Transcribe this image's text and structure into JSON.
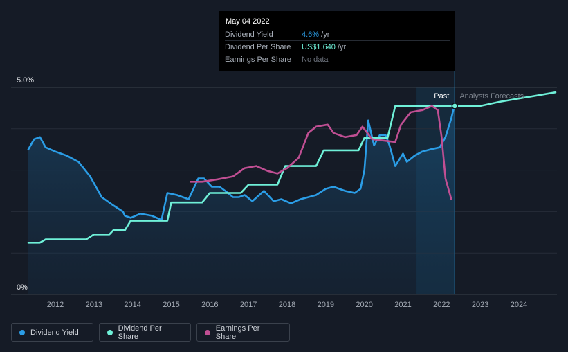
{
  "tooltip": {
    "date": "May 04 2022",
    "rows": [
      {
        "label": "Dividend Yield",
        "value": "4.6%",
        "unit": " /yr",
        "color": "#2b9de6"
      },
      {
        "label": "Dividend Per Share",
        "value": "US$1.640",
        "unit": " /yr",
        "color": "#6ff0d8"
      },
      {
        "label": "Earnings Per Share",
        "value": "No data",
        "unit": "",
        "color": "#6b717b"
      }
    ]
  },
  "legend": [
    {
      "label": "Dividend Yield",
      "color": "#2b9de6"
    },
    {
      "label": "Dividend Per Share",
      "color": "#6ff0d8"
    },
    {
      "label": "Earnings Per Share",
      "color": "#c04f93"
    }
  ],
  "chart_data": {
    "type": "line",
    "title": "",
    "ylabel": "",
    "xlabel": "",
    "x_ticks": [
      "2012",
      "2013",
      "2014",
      "2015",
      "2016",
      "2017",
      "2018",
      "2019",
      "2020",
      "2021",
      "2022",
      "2023",
      "2024"
    ],
    "y_ticks": [
      "0%",
      "5.0%"
    ],
    "ylim": [
      0,
      5.0
    ],
    "xlim": [
      2011.3,
      2024.95
    ],
    "past_label": "Past",
    "forecast_label": "Analysts Forecasts",
    "cursor_x": 2022.34,
    "forecast_band_start": 2021.35,
    "grid": true,
    "series": [
      {
        "name": "Dividend Yield",
        "color": "#2b9de6",
        "fill": true,
        "points": [
          [
            2011.3,
            3.5
          ],
          [
            2011.45,
            3.75
          ],
          [
            2011.6,
            3.8
          ],
          [
            2011.75,
            3.55
          ],
          [
            2012.0,
            3.45
          ],
          [
            2012.3,
            3.35
          ],
          [
            2012.6,
            3.2
          ],
          [
            2012.9,
            2.85
          ],
          [
            2013.2,
            2.35
          ],
          [
            2013.5,
            2.15
          ],
          [
            2013.75,
            2.0
          ],
          [
            2013.8,
            1.9
          ],
          [
            2013.95,
            1.85
          ],
          [
            2014.2,
            1.95
          ],
          [
            2014.5,
            1.9
          ],
          [
            2014.75,
            1.8
          ],
          [
            2014.9,
            2.45
          ],
          [
            2015.15,
            2.4
          ],
          [
            2015.45,
            2.3
          ],
          [
            2015.7,
            2.8
          ],
          [
            2015.85,
            2.8
          ],
          [
            2016.05,
            2.6
          ],
          [
            2016.25,
            2.6
          ],
          [
            2016.4,
            2.5
          ],
          [
            2016.6,
            2.35
          ],
          [
            2016.75,
            2.35
          ],
          [
            2016.9,
            2.4
          ],
          [
            2017.1,
            2.25
          ],
          [
            2017.4,
            2.5
          ],
          [
            2017.65,
            2.25
          ],
          [
            2017.85,
            2.3
          ],
          [
            2018.1,
            2.2
          ],
          [
            2018.35,
            2.3
          ],
          [
            2018.55,
            2.35
          ],
          [
            2018.75,
            2.4
          ],
          [
            2019.0,
            2.55
          ],
          [
            2019.2,
            2.6
          ],
          [
            2019.5,
            2.5
          ],
          [
            2019.75,
            2.45
          ],
          [
            2019.9,
            2.55
          ],
          [
            2020.0,
            3.0
          ],
          [
            2020.1,
            4.2
          ],
          [
            2020.25,
            3.6
          ],
          [
            2020.4,
            3.85
          ],
          [
            2020.55,
            3.85
          ],
          [
            2020.65,
            3.6
          ],
          [
            2020.8,
            3.1
          ],
          [
            2021.0,
            3.4
          ],
          [
            2021.1,
            3.2
          ],
          [
            2021.3,
            3.35
          ],
          [
            2021.5,
            3.45
          ],
          [
            2021.7,
            3.5
          ],
          [
            2021.95,
            3.55
          ],
          [
            2022.1,
            3.8
          ],
          [
            2022.25,
            4.25
          ],
          [
            2022.34,
            4.6
          ]
        ]
      },
      {
        "name": "Dividend Per Share",
        "color": "#6ff0d8",
        "fill": false,
        "points": [
          [
            2011.3,
            1.25
          ],
          [
            2011.6,
            1.25
          ],
          [
            2011.75,
            1.33
          ],
          [
            2012.8,
            1.33
          ],
          [
            2013.0,
            1.45
          ],
          [
            2013.4,
            1.45
          ],
          [
            2013.5,
            1.55
          ],
          [
            2013.8,
            1.55
          ],
          [
            2013.95,
            1.78
          ],
          [
            2014.9,
            1.78
          ],
          [
            2015.0,
            2.22
          ],
          [
            2015.8,
            2.22
          ],
          [
            2016.0,
            2.45
          ],
          [
            2016.8,
            2.45
          ],
          [
            2017.0,
            2.65
          ],
          [
            2017.75,
            2.65
          ],
          [
            2017.95,
            3.1
          ],
          [
            2018.75,
            3.1
          ],
          [
            2018.95,
            3.48
          ],
          [
            2019.85,
            3.48
          ],
          [
            2020.0,
            3.78
          ],
          [
            2020.6,
            3.78
          ],
          [
            2020.8,
            4.55
          ],
          [
            2022.34,
            4.55
          ],
          [
            2023.0,
            4.55
          ],
          [
            2023.5,
            4.65
          ],
          [
            2024.95,
            4.88
          ]
        ]
      },
      {
        "name": "Earnings Per Share",
        "color": "#c04f93",
        "fill": false,
        "points": [
          [
            2015.5,
            2.72
          ],
          [
            2015.8,
            2.72
          ],
          [
            2016.2,
            2.78
          ],
          [
            2016.6,
            2.85
          ],
          [
            2016.9,
            3.05
          ],
          [
            2017.2,
            3.1
          ],
          [
            2017.5,
            2.98
          ],
          [
            2017.75,
            2.92
          ],
          [
            2018.0,
            3.05
          ],
          [
            2018.3,
            3.3
          ],
          [
            2018.55,
            3.9
          ],
          [
            2018.75,
            4.05
          ],
          [
            2019.05,
            4.1
          ],
          [
            2019.2,
            3.9
          ],
          [
            2019.5,
            3.8
          ],
          [
            2019.8,
            3.85
          ],
          [
            2019.95,
            4.05
          ],
          [
            2020.2,
            3.75
          ],
          [
            2020.8,
            3.68
          ],
          [
            2020.95,
            4.1
          ],
          [
            2021.2,
            4.4
          ],
          [
            2021.5,
            4.45
          ],
          [
            2021.75,
            4.55
          ],
          [
            2021.9,
            4.45
          ],
          [
            2022.0,
            3.8
          ],
          [
            2022.1,
            2.8
          ],
          [
            2022.25,
            2.3
          ]
        ]
      }
    ]
  }
}
